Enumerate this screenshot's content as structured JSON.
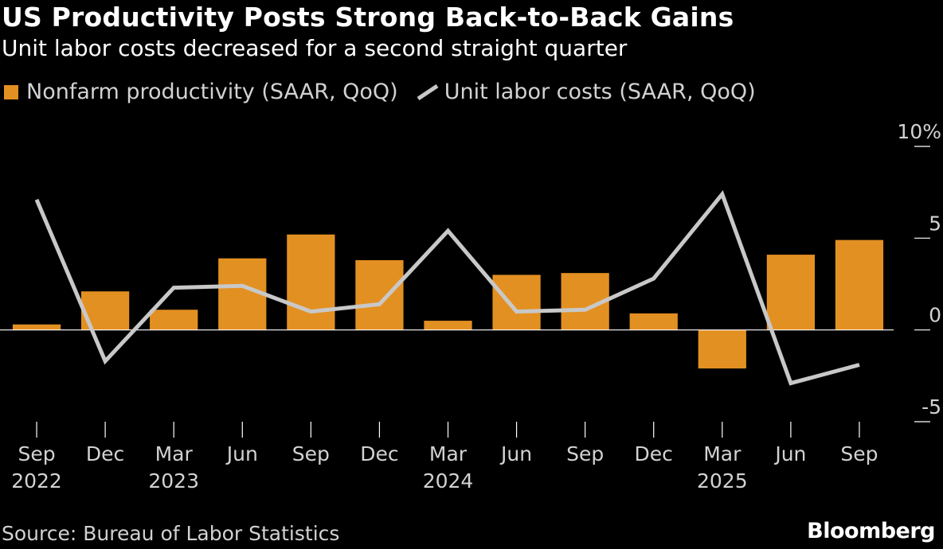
{
  "title": "US Productivity Posts Strong Back-to-Back Gains",
  "subtitle": "Unit labor costs decreased for a second straight quarter",
  "legend": {
    "bar_label": "Nonfarm productivity (SAAR, QoQ)",
    "line_label": "Unit labor costs (SAAR, QoQ)"
  },
  "source": "Source: Bureau of Labor Statistics",
  "brand": "Bloomberg",
  "colors": {
    "bar": "#e39022",
    "line": "#c8c8c8",
    "background": "#000000",
    "axis": "#ffffff"
  },
  "chart_data": {
    "type": "bar",
    "categories": [
      "Sep",
      "Dec",
      "Mar",
      "Jun",
      "Sep",
      "Dec",
      "Mar",
      "Jun",
      "Sep",
      "Dec",
      "Mar",
      "Jun",
      "Sep"
    ],
    "year_labels": [
      "2022",
      "",
      "2023",
      "",
      "",
      "",
      "2024",
      "",
      "",
      "",
      "2025",
      "",
      ""
    ],
    "series": [
      {
        "name": "Nonfarm productivity (SAAR, QoQ)",
        "type": "bar",
        "values": [
          0.3,
          2.1,
          1.1,
          3.9,
          5.2,
          3.8,
          0.5,
          3.0,
          3.1,
          0.9,
          -2.1,
          4.1,
          4.9
        ]
      },
      {
        "name": "Unit labor costs (SAAR, QoQ)",
        "type": "line",
        "values": [
          7.1,
          -1.7,
          2.3,
          2.4,
          1.0,
          1.4,
          5.4,
          1.0,
          1.1,
          2.8,
          7.4,
          -2.9,
          -1.9
        ]
      }
    ],
    "y_ticks": [
      10,
      5,
      0,
      -5
    ],
    "y_tick_labels": [
      "10%",
      "5",
      "0",
      "-5"
    ],
    "ylim": [
      -5,
      10
    ],
    "axis_position": "right",
    "grid": false,
    "legend_position": "top-left"
  }
}
